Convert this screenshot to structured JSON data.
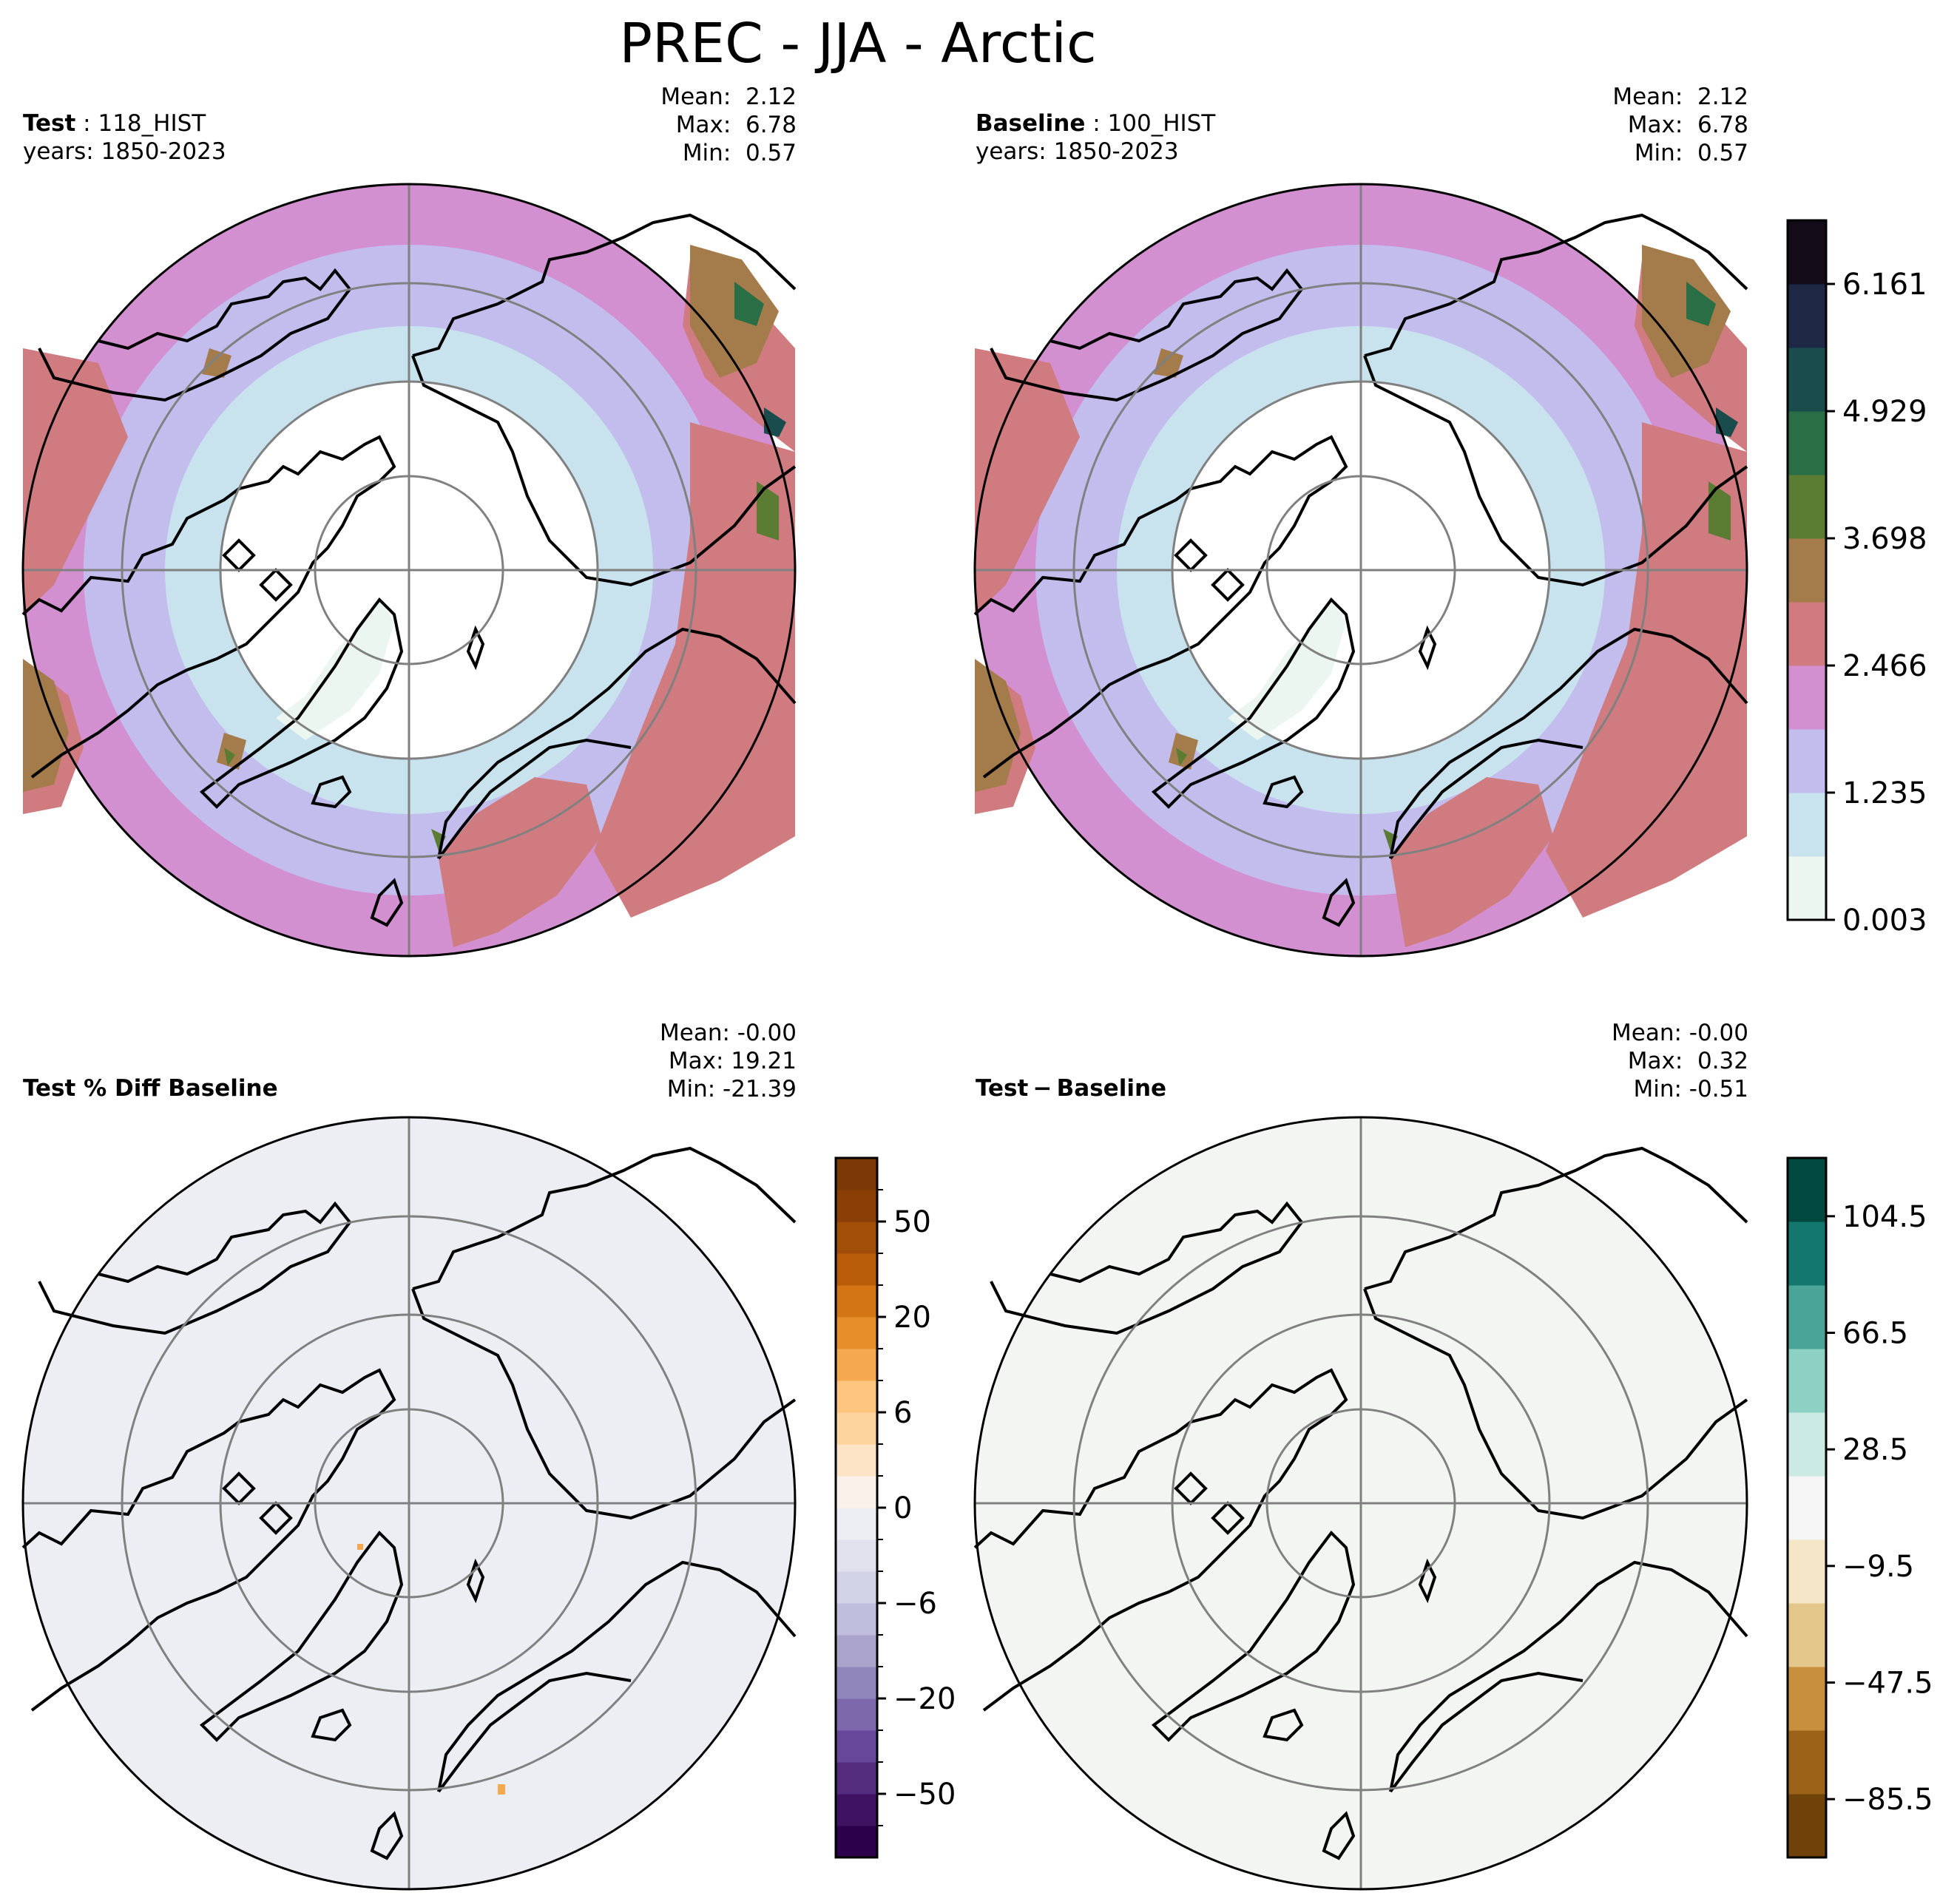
{
  "chart_data": {
    "type": "map",
    "title": "PREC - JJA - Arctic",
    "panels": [
      {
        "id": "test",
        "label": "Test",
        "run": "118_HIST",
        "years": "years: 1850-2023",
        "mean": "Mean:  2.12",
        "max": "Max:  6.78",
        "min": "Min:  0.57"
      },
      {
        "id": "baseline",
        "label": "Baseline",
        "run": "100_HIST",
        "years": "years: 1850-2023",
        "mean": "Mean:  2.12",
        "max": "Max:  6.78",
        "min": "Min:  0.57"
      },
      {
        "id": "pct_diff",
        "label": "Test % Diff Baseline",
        "mean": "Mean: -0.00",
        "max": "Max: 19.21",
        "min": "Min: -21.39"
      },
      {
        "id": "abs_diff",
        "label": "Test − Baseline",
        "mean": "Mean: -0.00",
        "max": "Max:  0.32",
        "min": "Min: -0.51"
      }
    ],
    "colorbars": {
      "main": {
        "ticks": [
          "6.161",
          "4.929",
          "3.698",
          "2.466",
          "1.235",
          "0.003"
        ],
        "tick_values": [
          6.161,
          4.929,
          3.698,
          2.466,
          1.235,
          0.003
        ],
        "range": [
          0.003,
          6.777
        ],
        "colors": [
          "#ecf6f1",
          "#c9e3ee",
          "#c3bdee",
          "#d290d0",
          "#cf7b80",
          "#a47b4b",
          "#5a7c33",
          "#2a6e45",
          "#1a4b4d",
          "#1e2743",
          "#140b18"
        ]
      },
      "pct_diff": {
        "ticks": [
          "50",
          "20",
          "6",
          "0",
          "−6",
          "−20",
          "−50"
        ],
        "tick_values": [
          50,
          20,
          6,
          0,
          -6,
          -20,
          -50
        ],
        "level_count": 22,
        "colors": [
          "#2d004b",
          "#3f1362",
          "#532c7d",
          "#66479a",
          "#7d68ac",
          "#9186bc",
          "#aaa4cd",
          "#bfbedd",
          "#d3d3e7",
          "#e2e2ee",
          "#edeef3",
          "#f9f1ea",
          "#fde4c7",
          "#fdd39e",
          "#fcc47f",
          "#f5a84e",
          "#e68e2a",
          "#d37514",
          "#b95c08",
          "#a04e08",
          "#8a3f06",
          "#7a3806"
        ]
      },
      "abs_diff": {
        "ticks": [
          "104.5",
          "66.5",
          "28.5",
          "−9.5",
          "−47.5",
          "−85.5"
        ],
        "tick_values": [
          104.5,
          66.5,
          28.5,
          -9.5,
          -47.5,
          -85.5
        ],
        "range": [
          -104.5,
          123.5
        ],
        "colors": [
          "#6e4209",
          "#9c6318",
          "#c78e3d",
          "#e3c68a",
          "#f4e6c6",
          "#f4f5f4",
          "#cbeae4",
          "#8cd1c3",
          "#4aa598",
          "#13776e",
          "#01493f"
        ]
      }
    }
  },
  "colors": {
    "diff_fill": "#edeef3",
    "abs_fill": "#f3f5f3",
    "grid": "#808080",
    "coast": "#000000"
  }
}
